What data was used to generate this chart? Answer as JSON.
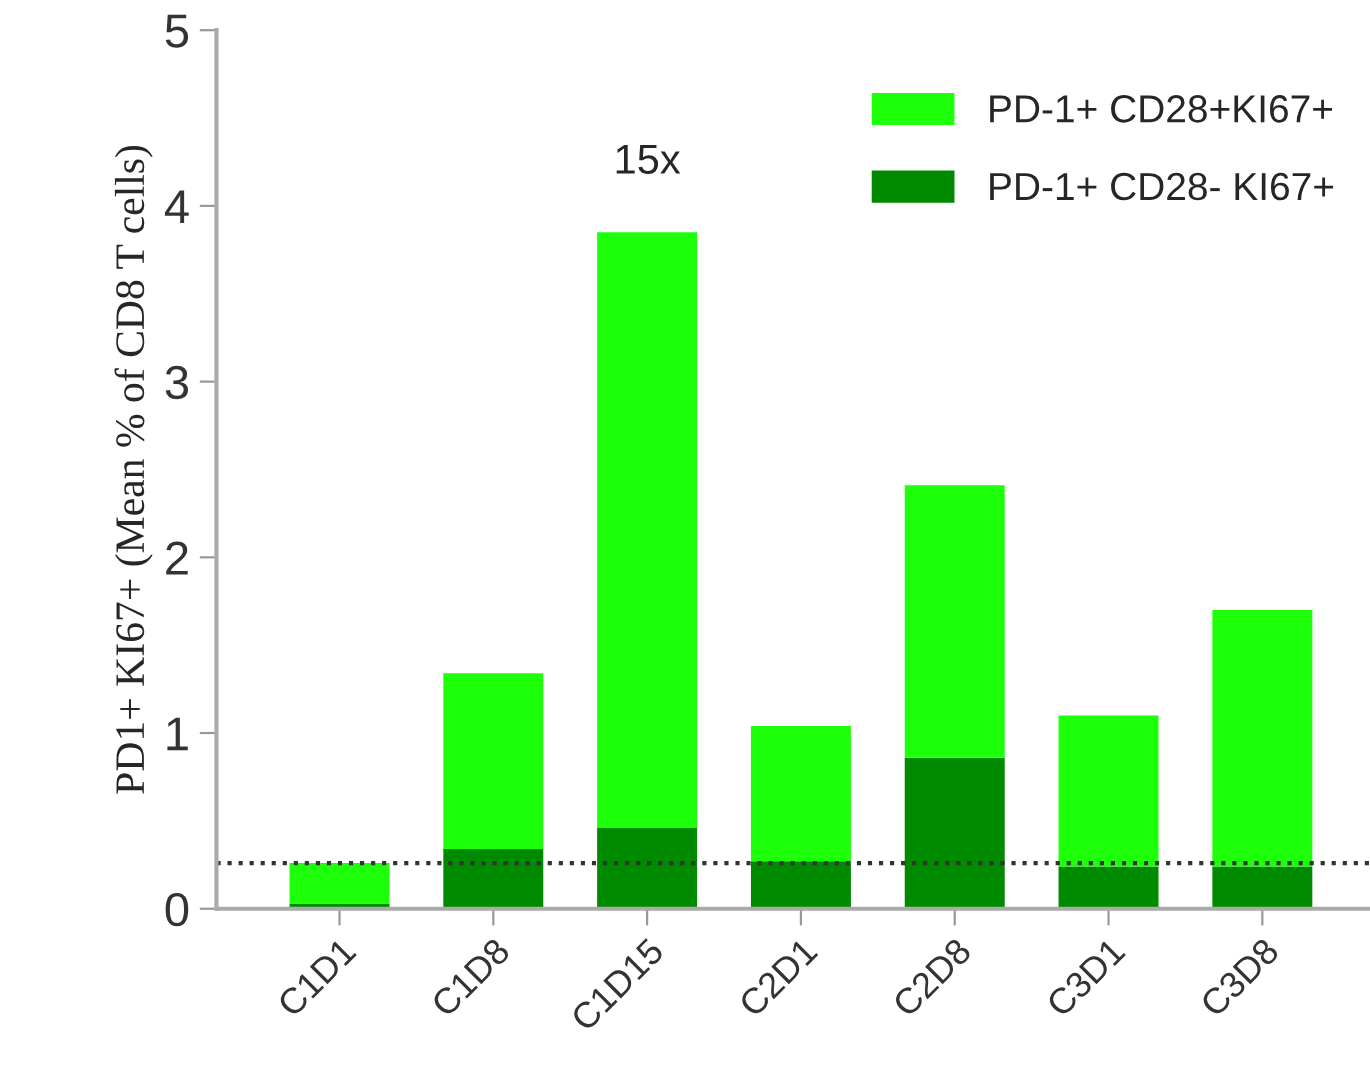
{
  "chart_data": {
    "type": "bar",
    "stacked": true,
    "ylabel": "PD1+ KI67+ (Mean % of CD8 T cells)",
    "categories": [
      "C1D1",
      "C1D8",
      "C1D15",
      "C2D1",
      "C2D8",
      "C3D1",
      "C3D8"
    ],
    "series": [
      {
        "name": "PD-1+ CD28- KI67+",
        "color": "#008a00",
        "values": [
          0.03,
          0.34,
          0.46,
          0.27,
          0.86,
          0.24,
          0.24
        ]
      },
      {
        "name": "PD-1+ CD28+KI67+",
        "color": "#1eff0a",
        "values": [
          0.23,
          1.0,
          3.39,
          0.77,
          1.55,
          0.86,
          1.46
        ]
      }
    ],
    "ylim": [
      0,
      5
    ],
    "yticks": [
      0,
      1,
      2,
      3,
      4,
      5
    ],
    "grid": false,
    "legend": "top right",
    "ref_lines": [
      {
        "axis": "y",
        "value": 0.26,
        "line_style": "dotted",
        "color": "#333333"
      }
    ],
    "annotations": [
      "15x"
    ]
  }
}
